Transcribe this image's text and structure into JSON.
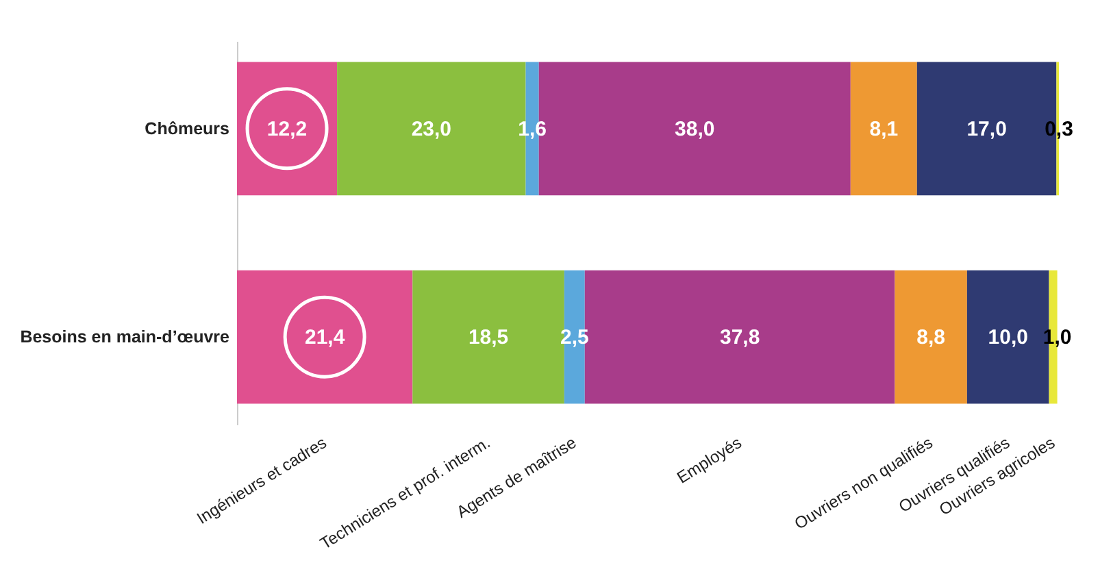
{
  "chart_data": {
    "type": "bar",
    "orientation": "horizontal",
    "stacked": true,
    "legend": false,
    "categories": [
      "Chômeurs",
      "Besoins en main-d’œuvre"
    ],
    "series": [
      {
        "name": "Ingénieurs et cadres",
        "color": "#e0508f",
        "values": [
          12.2,
          21.4
        ],
        "value_labels": [
          "12,2",
          "21,4"
        ]
      },
      {
        "name": "Techniciens et prof. interm.",
        "color": "#8bbf3f",
        "values": [
          23.0,
          18.5
        ],
        "value_labels": [
          "23,0",
          "18,5"
        ]
      },
      {
        "name": "Agents de maîtrise",
        "color": "#5ba8dc",
        "values": [
          1.6,
          2.5
        ],
        "value_labels": [
          "1,6",
          "2,5"
        ]
      },
      {
        "name": "Employés",
        "color": "#a83c8a",
        "values": [
          38.0,
          37.8
        ],
        "value_labels": [
          "38,0",
          "37,8"
        ]
      },
      {
        "name": "Ouvriers non qualifiés",
        "color": "#ee9933",
        "values": [
          8.1,
          8.8
        ],
        "value_labels": [
          "8,1",
          "8,8"
        ]
      },
      {
        "name": "Ouvriers qualifiés",
        "color": "#2f3a72",
        "values": [
          17.0,
          10.0
        ],
        "value_labels": [
          "17,0",
          "10,0"
        ]
      },
      {
        "name": "Ouvriers agricoles",
        "color": "#e8e83a",
        "values": [
          0.3,
          1.0
        ],
        "value_labels": [
          "0,3",
          "1,0"
        ]
      }
    ]
  }
}
